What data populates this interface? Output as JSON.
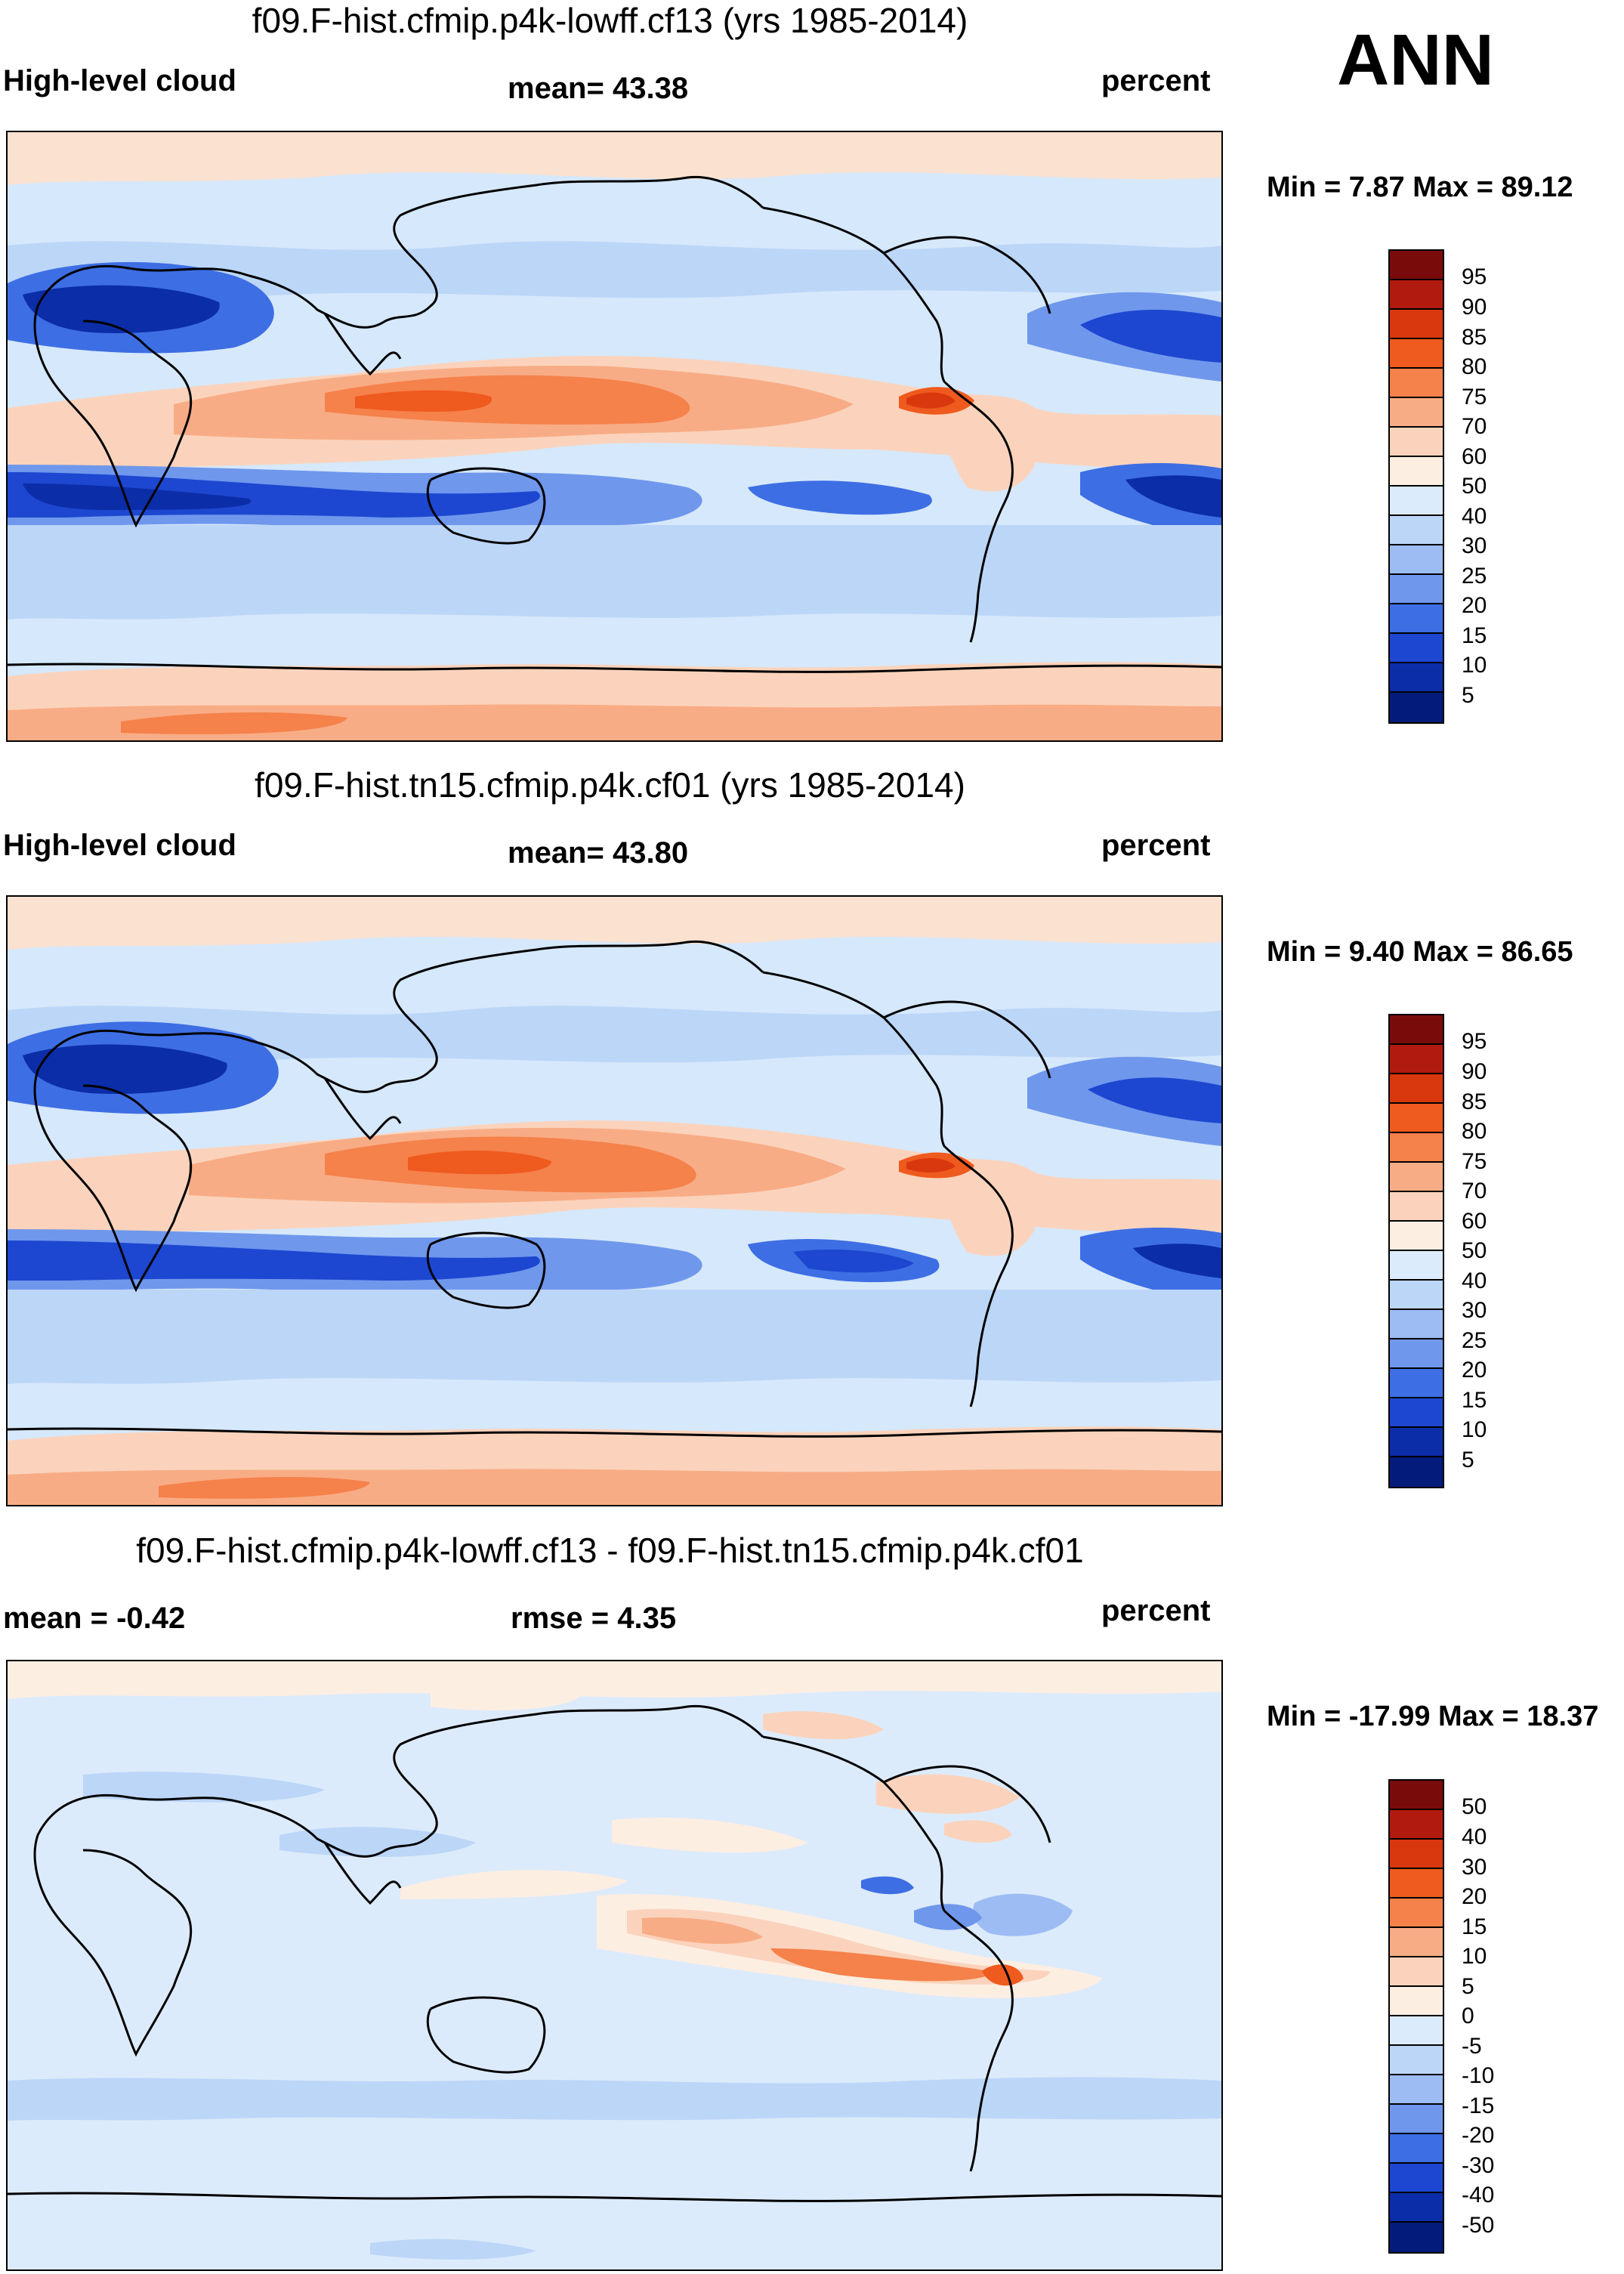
{
  "season": "ANN",
  "panels": [
    {
      "title": "f09.F-hist.cfmip.p4k-lowff.cf13 (yrs 1985-2014)",
      "left_label": "High-level cloud",
      "center_label": "mean=  43.38",
      "right_label": "percent",
      "minmax": "Min =   7.87 Max =  89.12",
      "colorbar": [
        "95",
        "90",
        "85",
        "80",
        "75",
        "70",
        "60",
        "50",
        "40",
        "30",
        "25",
        "20",
        "15",
        "10",
        "5"
      ],
      "map_name": "High-level cloud climatology map, cf13"
    },
    {
      "title": "f09.F-hist.tn15.cfmip.p4k.cf01 (yrs 1985-2014)",
      "left_label": "High-level cloud",
      "center_label": "mean=  43.80",
      "right_label": "percent",
      "minmax": "Min =   9.40 Max =  86.65",
      "colorbar": [
        "95",
        "90",
        "85",
        "80",
        "75",
        "70",
        "60",
        "50",
        "40",
        "30",
        "25",
        "20",
        "15",
        "10",
        "5"
      ],
      "map_name": "High-level cloud climatology map, cf01"
    },
    {
      "title": "f09.F-hist.cfmip.p4k-lowff.cf13 - f09.F-hist.tn15.cfmip.p4k.cf01",
      "left_label": "mean =  -0.42",
      "center_label": "rmse =    4.35",
      "right_label": "percent",
      "minmax": "Min = -17.99 Max =  18.37",
      "colorbar": [
        "50",
        "40",
        "30",
        "20",
        "15",
        "10",
        "5",
        "0",
        "-5",
        "-10",
        "-15",
        "-20",
        "-30",
        "-40",
        "-50"
      ],
      "map_name": "High-level cloud difference map"
    }
  ],
  "colors": {
    "colorbar": [
      "#7a0b0b",
      "#b11a0e",
      "#d9380f",
      "#ef5a1e",
      "#f5814b",
      "#f8ac85",
      "#fbd3bc",
      "#fdeee2",
      "#dcebfb",
      "#bcd6f8",
      "#9cbcf3",
      "#6f97ec",
      "#3d6ee4",
      "#1d47d0",
      "#0c2da8",
      "#031b7a"
    ],
    "land_line": "#000000"
  }
}
